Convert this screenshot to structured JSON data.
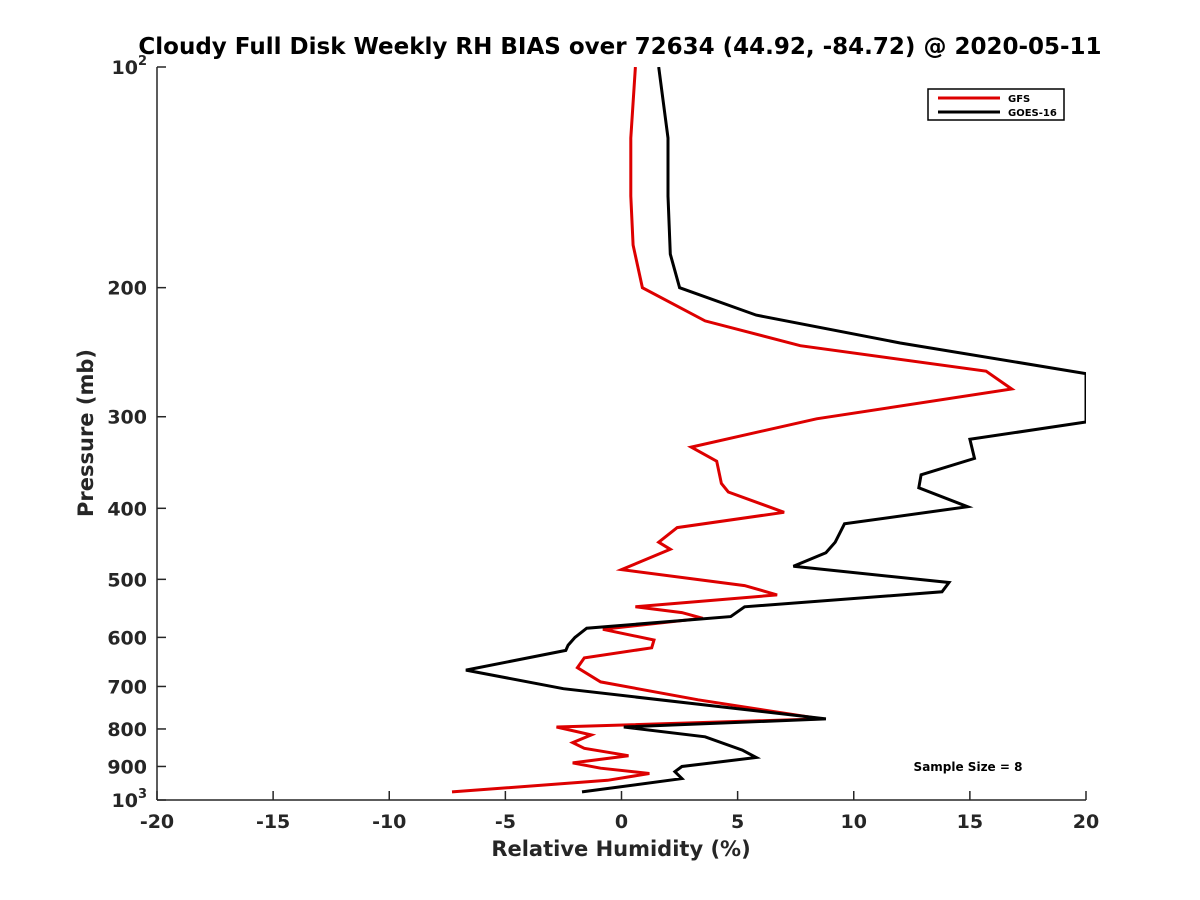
{
  "chart_data": {
    "type": "line",
    "title": "Cloudy Full Disk Weekly RH BIAS over 72634 (44.92, -84.72) @ 2020-05-11",
    "xlabel": "Relative Humidity (%)",
    "ylabel": "Pressure (mb)",
    "xlim": [
      -20,
      20
    ],
    "ylim": [
      100,
      1000
    ],
    "y_scale": "log",
    "y_reversed": true,
    "grid": false,
    "legend_position": "top-right",
    "x_ticks": [
      -20,
      -15,
      -10,
      -5,
      0,
      5,
      10,
      15,
      20
    ],
    "x_tick_labels": [
      "-20",
      "-15",
      "-10",
      "-5",
      "0",
      "5",
      "10",
      "15",
      "20"
    ],
    "y_ticks": [
      100,
      200,
      300,
      400,
      500,
      600,
      700,
      800,
      900,
      1000
    ],
    "y_tick_labels": [
      {
        "base": "10",
        "sup": "2"
      },
      {
        "base": "200",
        "sup": ""
      },
      {
        "base": "300",
        "sup": ""
      },
      {
        "base": "400",
        "sup": ""
      },
      {
        "base": "500",
        "sup": ""
      },
      {
        "base": "600",
        "sup": ""
      },
      {
        "base": "700",
        "sup": ""
      },
      {
        "base": "800",
        "sup": ""
      },
      {
        "base": "900",
        "sup": ""
      },
      {
        "base": "10",
        "sup": "3"
      }
    ],
    "annotation": "Sample Size = 8",
    "series": [
      {
        "name": "GFS",
        "color": "#dd0000",
        "points": [
          [
            0.6,
            100
          ],
          [
            0.4,
            125
          ],
          [
            0.4,
            150
          ],
          [
            0.5,
            175
          ],
          [
            0.9,
            200
          ],
          [
            3.6,
            222
          ],
          [
            7.7,
            240
          ],
          [
            15.7,
            260
          ],
          [
            16.8,
            275
          ],
          [
            8.4,
            302
          ],
          [
            3.0,
            330
          ],
          [
            4.1,
            345
          ],
          [
            4.3,
            370
          ],
          [
            4.6,
            380
          ],
          [
            7.0,
            405
          ],
          [
            2.4,
            425
          ],
          [
            1.6,
            445
          ],
          [
            2.1,
            455
          ],
          [
            0.0,
            485
          ],
          [
            5.3,
            510
          ],
          [
            6.7,
            525
          ],
          [
            0.6,
            545
          ],
          [
            2.6,
            555
          ],
          [
            3.5,
            565
          ],
          [
            -0.8,
            585
          ],
          [
            1.4,
            605
          ],
          [
            1.3,
            620
          ],
          [
            -1.6,
            640
          ],
          [
            -1.9,
            660
          ],
          [
            -0.9,
            690
          ],
          [
            3.3,
            730
          ],
          [
            8.6,
            775
          ],
          [
            -2.8,
            795
          ],
          [
            -1.3,
            815
          ],
          [
            -2.1,
            835
          ],
          [
            -1.6,
            850
          ],
          [
            0.3,
            870
          ],
          [
            -2.1,
            890
          ],
          [
            -0.9,
            905
          ],
          [
            1.2,
            920
          ],
          [
            -0.6,
            940
          ],
          [
            -7.3,
            975
          ]
        ]
      },
      {
        "name": "GOES-16",
        "color": "#000000",
        "points": [
          [
            1.6,
            100
          ],
          [
            2.0,
            125
          ],
          [
            2.0,
            150
          ],
          [
            2.1,
            180
          ],
          [
            2.5,
            200
          ],
          [
            5.8,
            218
          ],
          [
            12.0,
            238
          ],
          [
            20.0,
            262
          ],
          [
            20.0,
            305
          ],
          [
            15.0,
            322
          ],
          [
            15.2,
            342
          ],
          [
            12.9,
            360
          ],
          [
            12.8,
            375
          ],
          [
            14.9,
            398
          ],
          [
            9.6,
            420
          ],
          [
            9.2,
            445
          ],
          [
            8.8,
            460
          ],
          [
            7.4,
            480
          ],
          [
            14.1,
            505
          ],
          [
            13.8,
            520
          ],
          [
            5.3,
            545
          ],
          [
            4.7,
            562
          ],
          [
            -1.5,
            583
          ],
          [
            -2.0,
            600
          ],
          [
            -2.3,
            615
          ],
          [
            -2.4,
            625
          ],
          [
            -6.7,
            665
          ],
          [
            -2.5,
            705
          ],
          [
            8.8,
            775
          ],
          [
            0.1,
            795
          ],
          [
            3.6,
            820
          ],
          [
            5.2,
            855
          ],
          [
            5.8,
            875
          ],
          [
            2.6,
            900
          ],
          [
            2.3,
            915
          ],
          [
            2.6,
            935
          ],
          [
            -1.7,
            975
          ]
        ]
      }
    ]
  }
}
